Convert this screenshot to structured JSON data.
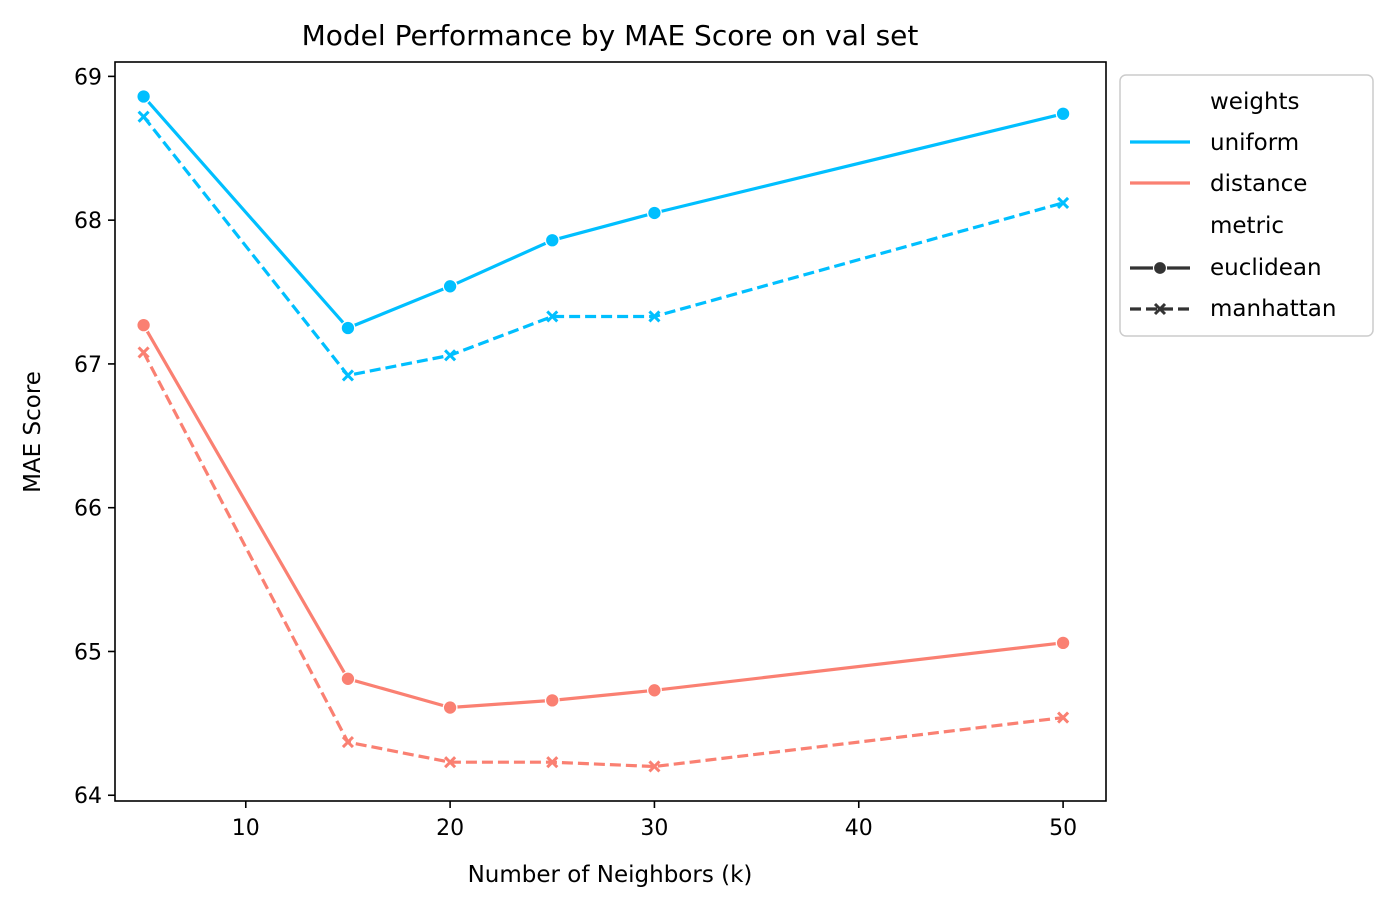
{
  "chart_data": {
    "type": "line",
    "title": "Model Performance by MAE Score on val set",
    "xlabel": "Number of Neighbors (k)",
    "ylabel": "MAE Score",
    "xlim": [
      3.6,
      52.1
    ],
    "ylim": [
      63.96,
      69.1
    ],
    "xticks": [
      10,
      20,
      30,
      40,
      50
    ],
    "yticks": [
      64,
      65,
      66,
      67,
      68,
      69
    ],
    "grid": false,
    "legend_position": "outside-right-top",
    "x": [
      5,
      15,
      20,
      25,
      30,
      50
    ],
    "series": [
      {
        "weights": "uniform",
        "metric": "euclidean",
        "color": "#00bfff",
        "dash": "solid",
        "marker": "circle",
        "values": [
          68.86,
          67.25,
          67.54,
          67.86,
          68.05,
          68.74
        ]
      },
      {
        "weights": "uniform",
        "metric": "manhattan",
        "color": "#00bfff",
        "dash": "dashed",
        "marker": "x",
        "values": [
          68.72,
          66.92,
          67.06,
          67.33,
          67.33,
          68.12
        ]
      },
      {
        "weights": "distance",
        "metric": "euclidean",
        "color": "#fa8072",
        "dash": "solid",
        "marker": "circle",
        "values": [
          67.27,
          64.81,
          64.61,
          64.66,
          64.73,
          65.06
        ]
      },
      {
        "weights": "distance",
        "metric": "manhattan",
        "color": "#fa8072",
        "dash": "dashed",
        "marker": "x",
        "values": [
          67.08,
          64.37,
          64.23,
          64.23,
          64.2,
          64.54
        ]
      }
    ]
  },
  "legend": {
    "weights_title": "weights",
    "weights": [
      {
        "label": "uniform",
        "color": "#00bfff"
      },
      {
        "label": "distance",
        "color": "#fa8072"
      }
    ],
    "metric_title": "metric",
    "metric": [
      {
        "label": "euclidean",
        "marker": "circle",
        "dash": "solid",
        "color": "#333333"
      },
      {
        "label": "manhattan",
        "marker": "x",
        "dash": "dashed",
        "color": "#333333"
      }
    ]
  }
}
